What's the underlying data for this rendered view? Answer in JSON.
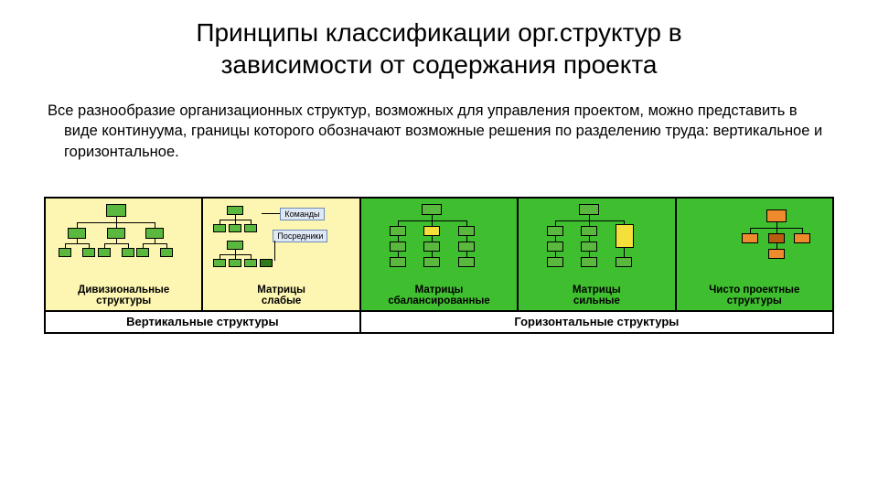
{
  "title_line1": "Принципы классификации орг.структур в",
  "title_line2": "зависимости от содержания проекта",
  "body": "Все разнообразие организационных структур, возможных для управления проектом, можно представить в виде континуума, границы которого обозначают возможные решения по разделению труда: вертикальное и горизонтальное.",
  "footer_left": "Вертикальные структуры",
  "footer_right": "Горизонтальные структуры",
  "cells": [
    {
      "label": "Дивизиональные\nструктуры"
    },
    {
      "label": "Матрицы\nслабые",
      "annot_top": "Команды",
      "annot_bottom": "Посредники"
    },
    {
      "label": "Матрицы\nсбалансированные"
    },
    {
      "label": "Матрицы\nсильные"
    },
    {
      "label": "Чисто проектные\nструктуры"
    }
  ],
  "colors": {
    "zone_yellow": "#fdf6b2",
    "zone_green": "#3fbf2f",
    "box_green": "#5ab83e",
    "box_green_dark": "#2f7a1c",
    "box_yellow": "#f5df3a",
    "box_orange": "#ee8b2c",
    "box_orange_dark": "#b85c11"
  }
}
